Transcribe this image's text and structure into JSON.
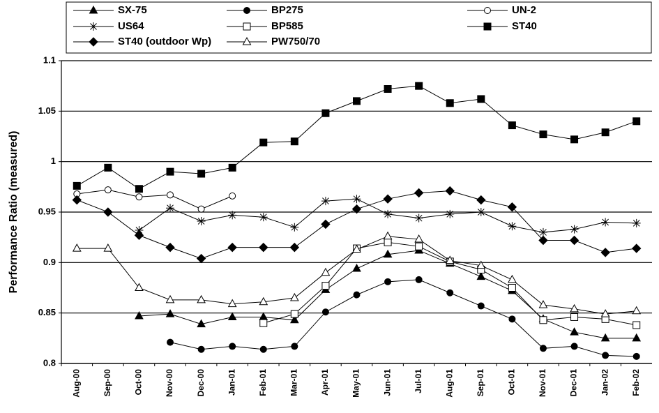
{
  "chart_data": {
    "type": "line",
    "y_label": "Performance Ratio (measured)",
    "categories": [
      "Aug-00",
      "Sep-00",
      "Oct-00",
      "Nov-00",
      "Dec-00",
      "Jan-01",
      "Feb-01",
      "Mar-01",
      "Apr-01",
      "May-01",
      "Jun-01",
      "Jul-01",
      "Aug-01",
      "Sep-01",
      "Oct-01",
      "Nov-01",
      "Dec-01",
      "Jan-02",
      "Feb-02"
    ],
    "ylim": [
      0.8,
      1.1
    ],
    "yticks": [
      0.8,
      0.85,
      0.9,
      0.95,
      1,
      1.05,
      1.1
    ],
    "grid": true,
    "series": [
      {
        "name": "SX-75",
        "color": "#000000",
        "marker": "triangle-filled",
        "values": [
          null,
          null,
          0.847,
          0.849,
          0.839,
          0.846,
          0.846,
          0.843,
          0.873,
          0.894,
          0.908,
          0.912,
          0.899,
          0.886,
          0.872,
          0.844,
          0.831,
          0.825,
          0.825
        ]
      },
      {
        "name": "BP275",
        "color": "#000000",
        "marker": "circle-filled",
        "values": [
          null,
          null,
          null,
          0.821,
          0.814,
          0.817,
          0.814,
          0.817,
          0.851,
          0.868,
          0.881,
          0.883,
          0.87,
          0.857,
          0.844,
          0.815,
          0.817,
          0.808,
          0.807
        ]
      },
      {
        "name": "UN-2",
        "color": "#000000",
        "marker": "circle-open",
        "values": [
          0.968,
          0.972,
          0.965,
          0.967,
          0.953,
          0.966,
          null,
          null,
          null,
          null,
          null,
          null,
          null,
          null,
          null,
          null,
          null,
          null,
          null
        ]
      },
      {
        "name": "US64",
        "color": "#000000",
        "marker": "asterisk",
        "values": [
          null,
          null,
          0.932,
          0.954,
          0.941,
          0.947,
          0.945,
          0.935,
          0.961,
          0.963,
          0.948,
          0.944,
          0.948,
          0.95,
          0.936,
          0.93,
          0.933,
          0.94,
          0.939
        ]
      },
      {
        "name": "BP585",
        "color": "#000000",
        "marker": "square-open",
        "values": [
          null,
          null,
          null,
          null,
          null,
          null,
          0.84,
          0.849,
          0.877,
          0.914,
          0.92,
          0.916,
          0.901,
          0.893,
          0.875,
          0.843,
          0.846,
          0.844,
          0.838
        ]
      },
      {
        "name": "ST40",
        "color": "#000000",
        "marker": "square-filled",
        "values": [
          0.976,
          0.994,
          0.973,
          0.99,
          0.988,
          0.994,
          1.019,
          1.02,
          1.048,
          1.06,
          1.072,
          1.075,
          1.058,
          1.062,
          1.036,
          1.027,
          1.022,
          1.029,
          1.04
        ]
      },
      {
        "name": "ST40 (outdoor Wp)",
        "color": "#000000",
        "marker": "diamond-filled",
        "values": [
          0.962,
          0.95,
          0.927,
          0.915,
          0.904,
          0.915,
          0.915,
          0.915,
          0.938,
          0.953,
          0.963,
          0.969,
          0.971,
          0.962,
          0.955,
          0.922,
          0.922,
          0.91,
          0.914
        ]
      },
      {
        "name": "PW750/70",
        "color": "#000000",
        "marker": "triangle-open",
        "values": [
          0.914,
          0.914,
          0.875,
          0.863,
          0.863,
          0.859,
          0.861,
          0.865,
          0.89,
          0.913,
          0.926,
          0.923,
          0.902,
          0.897,
          0.883,
          0.858,
          0.854,
          0.849,
          0.852
        ]
      }
    ]
  }
}
